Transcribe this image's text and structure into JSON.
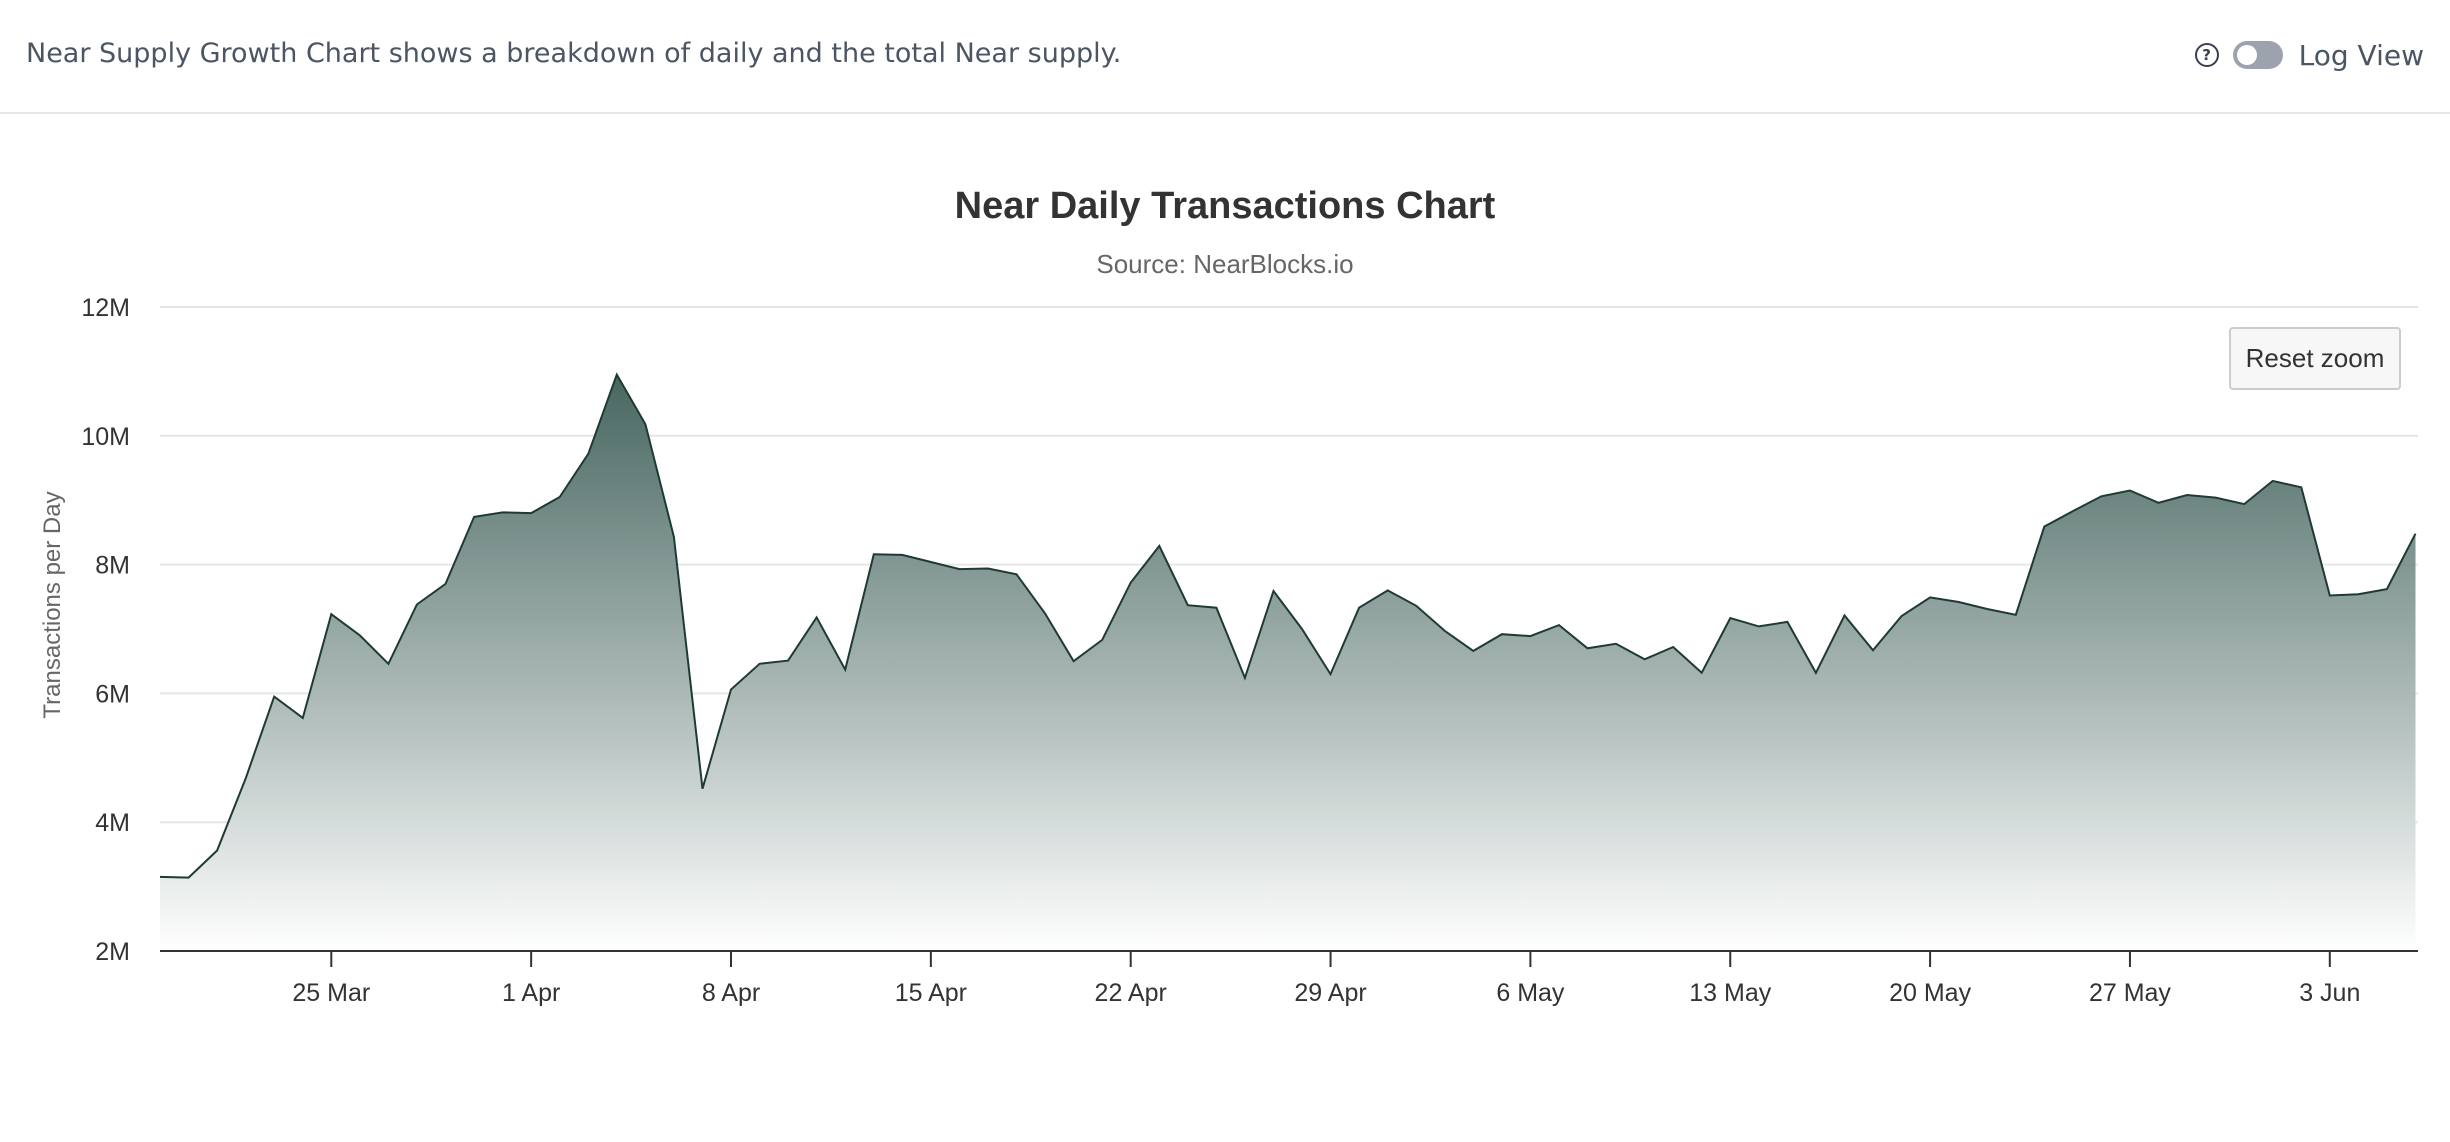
{
  "header": {
    "description": "Near Supply Growth Chart shows a breakdown of daily and the total Near supply.",
    "help_icon": "question-circle-icon",
    "toggle_label": "Log View",
    "toggle_on": false
  },
  "reset_zoom_label": "Reset zoom",
  "colors": {
    "line": "#1e3a34",
    "fill_top": "#3f5f59",
    "fill_bottom": "#ffffff",
    "grid": "#e6e6e6",
    "axis": "#333333"
  },
  "chart_data": {
    "type": "area",
    "title": "Near Daily Transactions Chart",
    "subtitle": "Source: NearBlocks.io",
    "ylabel": "Transactions per Day",
    "xlabel": "",
    "ylim": [
      2000000,
      12000000
    ],
    "yticks": [
      2000000,
      4000000,
      6000000,
      8000000,
      10000000,
      12000000
    ],
    "ytick_labels": [
      "2M",
      "4M",
      "6M",
      "8M",
      "10M",
      "12M"
    ],
    "x_start": "2024-03-19",
    "xticks": [
      "2024-03-25",
      "2024-04-01",
      "2024-04-08",
      "2024-04-15",
      "2024-04-22",
      "2024-04-29",
      "2024-05-06",
      "2024-05-13",
      "2024-05-20",
      "2024-05-27",
      "2024-06-03"
    ],
    "xtick_labels": [
      "25 Mar",
      "1 Apr",
      "8 Apr",
      "15 Apr",
      "22 Apr",
      "29 Apr",
      "6 May",
      "13 May",
      "20 May",
      "27 May",
      "3 Jun"
    ],
    "grid": true,
    "legend": "none",
    "series": [
      {
        "values": [
          3150000,
          3140000,
          3560000,
          4680000,
          5950000,
          5620000,
          7230000,
          6900000,
          6460000,
          7380000,
          7700000,
          8740000,
          8810000,
          8800000,
          9050000,
          9720000,
          10950000,
          10180000,
          8430000,
          4520000,
          6060000,
          6460000,
          6510000,
          7180000,
          6370000,
          8160000,
          8150000,
          8040000,
          7930000,
          7940000,
          7850000,
          7240000,
          6500000,
          6830000,
          7720000,
          8290000,
          7370000,
          7330000,
          6240000,
          7590000,
          7000000,
          6300000,
          7330000,
          7600000,
          7360000,
          6970000,
          6660000,
          6920000,
          6890000,
          7060000,
          6700000,
          6770000,
          6530000,
          6720000,
          6320000,
          7170000,
          7040000,
          7110000,
          6320000,
          7210000,
          6670000,
          7200000,
          7490000,
          7420000,
          7310000,
          7220000,
          8590000,
          8830000,
          9060000,
          9150000,
          8960000,
          9080000,
          9040000,
          8940000,
          9300000,
          9200000,
          7520000,
          7540000,
          7620000,
          8480000
        ]
      }
    ]
  }
}
